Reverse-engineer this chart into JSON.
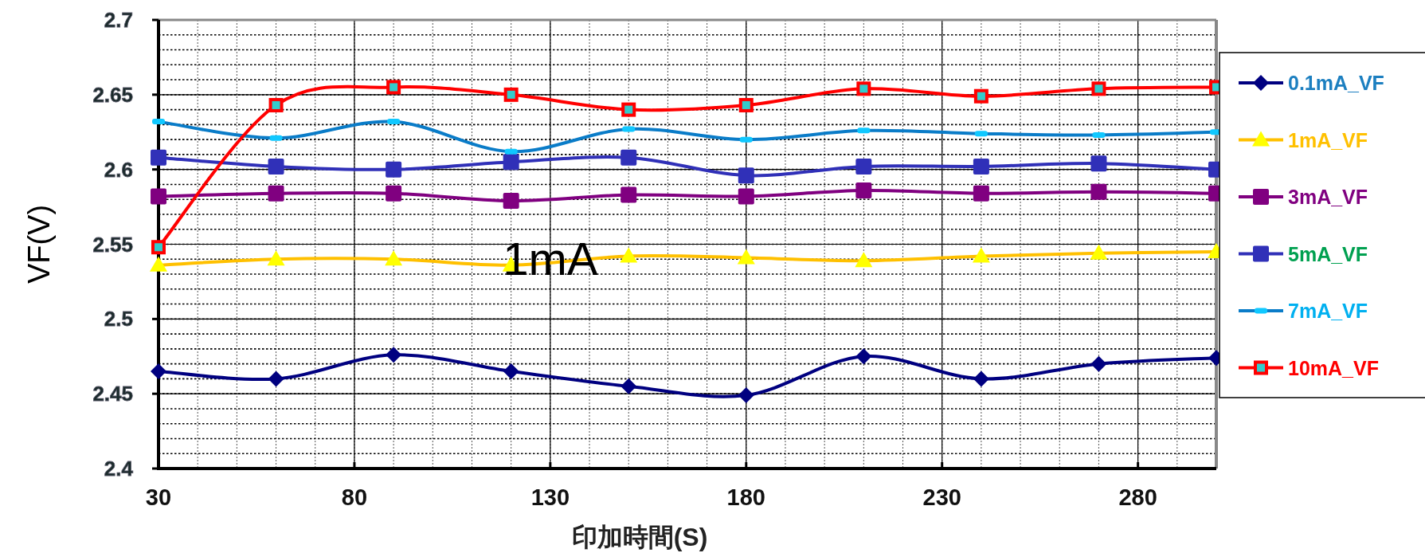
{
  "chart_data": {
    "type": "line",
    "xlabel": "印加時間(S)",
    "ylabel": "VF(V)",
    "x": [
      30,
      60,
      90,
      120,
      150,
      180,
      210,
      240,
      270,
      300
    ],
    "xlim": [
      30,
      300
    ],
    "xticks": [
      30,
      80,
      130,
      180,
      230,
      280
    ],
    "ylim": [
      2.4,
      2.7
    ],
    "yticks": [
      2.4,
      2.45,
      2.5,
      2.55,
      2.6,
      2.65,
      2.7
    ],
    "grid": true,
    "legend": "right",
    "line_style": "solid",
    "annotations": [
      {
        "text": "1mA",
        "x": 130,
        "y": 2.54
      }
    ],
    "series": [
      {
        "name": "0.1mA_VF",
        "color": "#000080",
        "marker": "diamond",
        "values": [
          2.465,
          2.46,
          2.476,
          2.465,
          2.455,
          2.449,
          2.475,
          2.46,
          2.47,
          2.474
        ]
      },
      {
        "name": "1mA_VF",
        "color": "#ffc000",
        "marker": "triangle",
        "values": [
          2.536,
          2.54,
          2.54,
          2.536,
          2.542,
          2.541,
          2.539,
          2.542,
          2.544,
          2.545
        ]
      },
      {
        "name": "3mA_VF",
        "color": "#800080",
        "marker": "square",
        "values": [
          2.582,
          2.584,
          2.584,
          2.579,
          2.583,
          2.582,
          2.586,
          2.584,
          2.585,
          2.584
        ]
      },
      {
        "name": "5mA_VF",
        "color": "#3030b8",
        "marker": "square",
        "values": [
          2.608,
          2.602,
          2.6,
          2.605,
          2.608,
          2.596,
          2.602,
          2.602,
          2.604,
          2.6
        ]
      },
      {
        "name": "7mA_VF",
        "color": "#0a7cc8",
        "marker": "square",
        "values": [
          2.632,
          2.621,
          2.632,
          2.612,
          2.627,
          2.62,
          2.626,
          2.624,
          2.623,
          2.625
        ]
      },
      {
        "name": "10mA_VF",
        "color": "#ff0000",
        "marker": "square",
        "values": [
          2.548,
          2.643,
          2.655,
          2.65,
          2.64,
          2.643,
          2.654,
          2.649,
          2.654,
          2.655
        ]
      }
    ]
  }
}
